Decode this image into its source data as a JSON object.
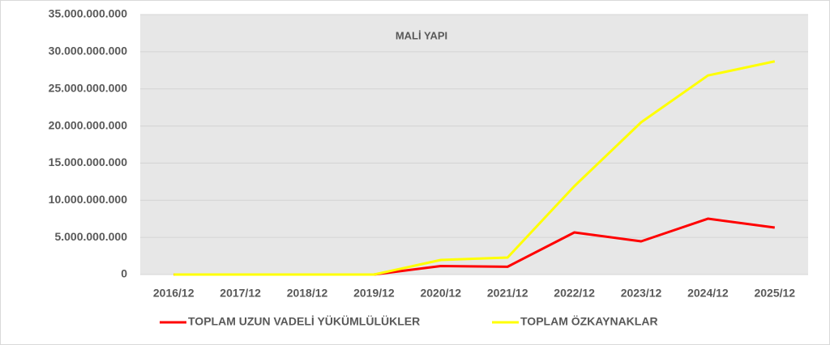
{
  "chart_data": {
    "type": "line",
    "title": "MALİ YAPI",
    "categories": [
      "2016/12",
      "2017/12",
      "2018/12",
      "2019/12",
      "2020/12",
      "2021/12",
      "2022/12",
      "2023/12",
      "2024/12",
      "2025/12"
    ],
    "series": [
      {
        "name": "TOPLAM UZUN VADELİ YÜKÜMLÜLÜKLER",
        "color": "#ff0000",
        "values": [
          0,
          0,
          0,
          0,
          1150000000,
          1050000000,
          5670000000,
          4470000000,
          7520000000,
          6320000000
        ]
      },
      {
        "name": "TOPLAM ÖZKAYNAKLAR",
        "color": "#ffff00",
        "values": [
          0,
          0,
          0,
          0,
          1960000000,
          2290000000,
          11900000000,
          20500000000,
          26800000000,
          28700000000
        ]
      }
    ],
    "ylim": [
      0,
      35000000000
    ],
    "yticks": [
      0,
      {
        "value": 5000000000,
        "label": "5.000.000.000"
      },
      {
        "value": 10000000000,
        "label": "10.000.000.000"
      },
      {
        "value": 15000000000,
        "label": "15.000.000.000"
      },
      {
        "value": 20000000000,
        "label": "20.000.000.000"
      },
      {
        "value": 25000000000,
        "label": "25.000.000.000"
      },
      {
        "value": 30000000000,
        "label": "30.000.000.000"
      },
      {
        "value": 35000000000,
        "label": "35.000.000.000"
      }
    ],
    "grid": true,
    "legend": "bottom"
  }
}
